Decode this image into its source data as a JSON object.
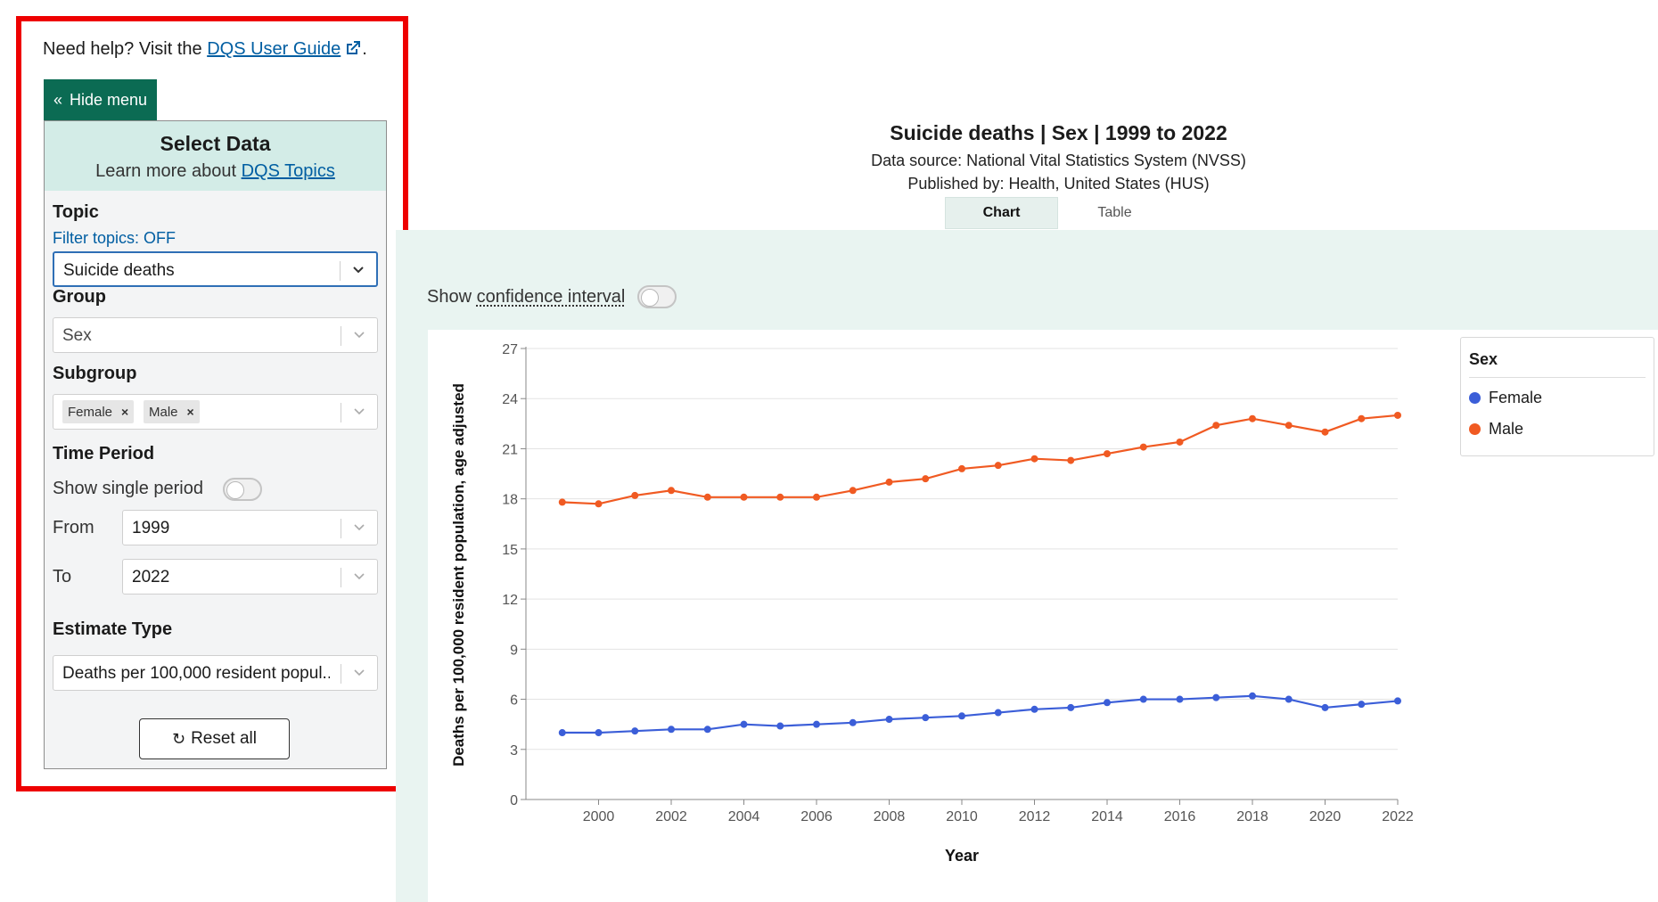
{
  "help": {
    "prefix": "Need help? Visit the ",
    "link": "DQS User Guide",
    "suffix": "."
  },
  "menu": {
    "hide_label": "Hide menu"
  },
  "select_data": {
    "title": "Select Data",
    "learn_prefix": "Learn more about ",
    "learn_link": "DQS Topics",
    "topic_label": "Topic",
    "filter_topics": "Filter topics: OFF",
    "topic_value": "Suicide deaths",
    "group_label": "Group",
    "group_value": "Sex",
    "subgroup_label": "Subgroup",
    "subgroup_chips": [
      "Female",
      "Male"
    ],
    "time_label": "Time Period",
    "single_period_label": "Show single period",
    "from_label": "From",
    "from_value": "1999",
    "to_label": "To",
    "to_value": "2022",
    "estimate_label": "Estimate Type",
    "estimate_value": "Deaths per 100,000 resident popul...",
    "reset_label": "Reset all"
  },
  "chart_header": {
    "title": "Suicide deaths | Sex | 1999 to 2022",
    "source": "Data source: National Vital Statistics System (NVSS)",
    "published": "Published by: Health, United States (HUS)"
  },
  "tabs": [
    {
      "label": "Chart",
      "selected": true
    },
    {
      "label": "Table",
      "selected": false
    }
  ],
  "ci": {
    "prefix": "Show ",
    "term": "confidence interval"
  },
  "colors": {
    "female": "#3b5ed8",
    "male": "#f05a22",
    "accent": "#0b6b53"
  },
  "icons": {
    "external_link": "external-link-icon",
    "chevron_down": "chevron-down-icon",
    "reset": "reset-icon"
  },
  "chart_data": {
    "type": "line",
    "title": "Suicide deaths | Sex | 1999 to 2022",
    "xlabel": "Year",
    "ylabel": "Deaths per 100,000 resident population, age adjusted",
    "x": [
      1999,
      2000,
      2001,
      2002,
      2003,
      2004,
      2005,
      2006,
      2007,
      2008,
      2009,
      2010,
      2011,
      2012,
      2013,
      2014,
      2015,
      2016,
      2017,
      2018,
      2019,
      2020,
      2021,
      2022
    ],
    "xticks": [
      2000,
      2002,
      2004,
      2006,
      2008,
      2010,
      2012,
      2014,
      2016,
      2018,
      2020,
      2022
    ],
    "yticks": [
      0,
      3,
      6,
      9,
      12,
      15,
      18,
      21,
      24,
      27
    ],
    "ylim": [
      0,
      27
    ],
    "xlim": [
      1998,
      2022
    ],
    "grid": true,
    "legend_title": "Sex",
    "legend_position": "right",
    "series": [
      {
        "name": "Female",
        "color": "#3b5ed8",
        "values": [
          4.0,
          4.0,
          4.1,
          4.2,
          4.2,
          4.5,
          4.4,
          4.5,
          4.6,
          4.8,
          4.9,
          5.0,
          5.2,
          5.4,
          5.5,
          5.8,
          6.0,
          6.0,
          6.1,
          6.2,
          6.0,
          5.5,
          5.7,
          5.9
        ]
      },
      {
        "name": "Male",
        "color": "#f05a22",
        "values": [
          17.8,
          17.7,
          18.2,
          18.5,
          18.1,
          18.1,
          18.1,
          18.1,
          18.5,
          19.0,
          19.2,
          19.8,
          20.0,
          20.4,
          20.3,
          20.7,
          21.1,
          21.4,
          22.4,
          22.8,
          22.4,
          22.0,
          22.8,
          23.0
        ]
      }
    ]
  }
}
